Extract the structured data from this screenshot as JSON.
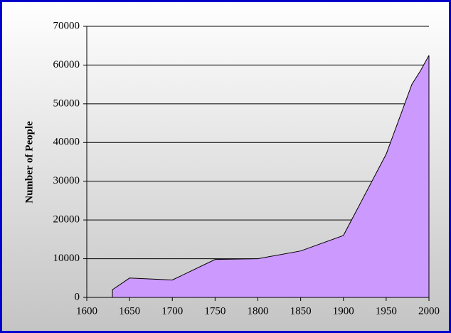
{
  "chart_data": {
    "type": "area",
    "y_label": "Number of People",
    "x": [
      1630,
      1650,
      1700,
      1750,
      1800,
      1850,
      1900,
      1950,
      1980,
      1990,
      2000
    ],
    "values": [
      2000,
      5000,
      4500,
      9800,
      10000,
      12000,
      16000,
      37000,
      55000,
      58500,
      62500
    ],
    "color": "#cc99ff",
    "xlim": [
      1600,
      2000
    ],
    "xticks": [
      1600,
      1650,
      1700,
      1750,
      1800,
      1850,
      1900,
      1950,
      2000
    ],
    "ylim": [
      0,
      70000
    ],
    "yticks": [
      0,
      10000,
      20000,
      30000,
      40000,
      50000,
      60000,
      70000
    ],
    "grid": true
  }
}
